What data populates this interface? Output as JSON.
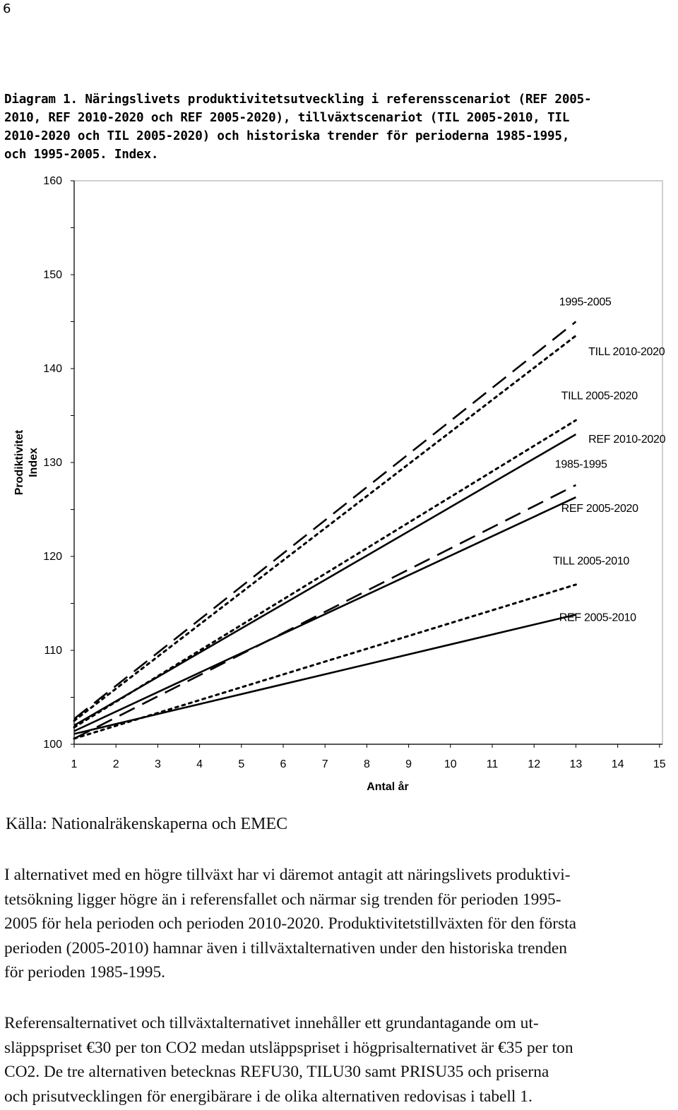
{
  "page_number": "6",
  "caption_lines": [
    "Diagram 1. Näringslivets produktivitetsutveckling i referensscenariot (REF 2005-",
    "2010, REF 2010-2020 och REF 2005-2020), tillväxtscenariot (TIL 2005-2010, TIL",
    "2010-2020 och TIL 2005-2020) och historiska trender för perioderna 1985-1995,",
    "och 1995-2005. Index."
  ],
  "chart_data": {
    "type": "line",
    "title": "",
    "xlabel": "Antal år",
    "ylabel_lines": [
      "Prodiktivitet",
      "Index"
    ],
    "x": [
      1,
      2,
      3,
      4,
      5,
      6,
      7,
      8,
      9,
      10,
      11,
      12,
      13,
      14,
      15
    ],
    "xlim": [
      1,
      15
    ],
    "ylim": [
      100,
      160
    ],
    "yticks": [
      100,
      110,
      120,
      130,
      140,
      150,
      160
    ],
    "xticks": [
      1,
      2,
      3,
      4,
      5,
      6,
      7,
      8,
      9,
      10,
      11,
      12,
      13,
      14,
      15
    ],
    "series": [
      {
        "name": "1995-2005",
        "style": "longdash",
        "x": [
          1,
          13
        ],
        "y": [
          102.7,
          145.0
        ]
      },
      {
        "name": "TILL 2010-2020",
        "style": "dotted",
        "x": [
          1,
          13
        ],
        "y": [
          102.5,
          143.5
        ]
      },
      {
        "name": "TILL 2005-2020",
        "style": "dotted",
        "x": [
          1,
          13
        ],
        "y": [
          101.8,
          134.5
        ]
      },
      {
        "name": "REF 2010-2020",
        "style": "solid",
        "x": [
          1,
          13
        ],
        "y": [
          102.0,
          133.0
        ]
      },
      {
        "name": "1985-1995",
        "style": "longdash",
        "x": [
          1,
          13
        ],
        "y": [
          100.6,
          127.6
        ]
      },
      {
        "name": "REF 2005-2020",
        "style": "solid",
        "x": [
          1,
          13
        ],
        "y": [
          101.4,
          126.3
        ]
      },
      {
        "name": "TILL 2005-2010",
        "style": "dotted",
        "x": [
          1,
          13
        ],
        "y": [
          100.6,
          117.0
        ]
      },
      {
        "name": "REF 2005-2010",
        "style": "solid",
        "x": [
          1,
          13
        ],
        "y": [
          101.1,
          113.8
        ]
      }
    ],
    "grid": false
  },
  "source_text": "Källa: Nationalräkenskaperna och EMEC",
  "paragraph1_lines": [
    "I alternativet med en högre tillväxt har vi däremot antagit att näringslivets produktivi-",
    "tetsökning ligger högre än i referensfallet och närmar sig trenden för perioden 1995-",
    "2005 för hela perioden och perioden 2010-2020. Produktivitetstillväxten för den första",
    "perioden (2005-2010) hamnar även i tillväxtalternativen under den historiska trenden",
    "för perioden 1985-1995."
  ],
  "paragraph2_lines": [
    "Referensalternativet och tillväxtalternativet innehåller ett grundantagande om ut-",
    "släppspriset €30 per ton CO2 medan utsläppspriset i högprisalternativet är €35 per ton",
    "CO2. De tre alternativen betecknas REFU30, TILU30 samt PRISU35 och priserna",
    "och prisutvecklingen för energibärare i de olika alternativen redovisas i tabell 1."
  ]
}
